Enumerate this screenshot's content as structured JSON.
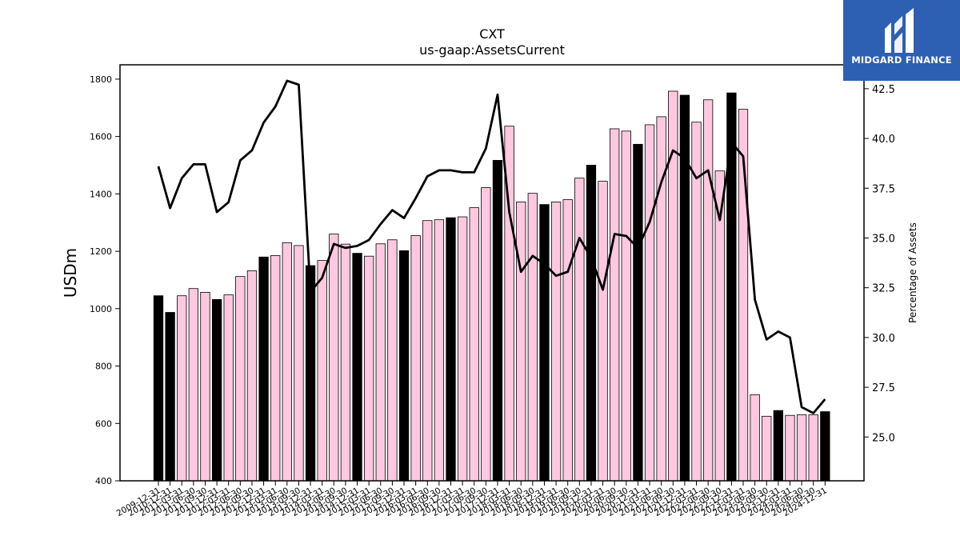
{
  "brand": {
    "name": "MIDGARD FINANCE",
    "logo_icon": "midgard-logo-icon",
    "bg_color": "#2d5fb3"
  },
  "chart_data": {
    "type": "bar",
    "title": "CXT",
    "subtitle": "us-gaap:AssetsCurrent",
    "ylabel": "USDm",
    "y2label": "Percentage of Assets",
    "ylim": [
      400,
      1850
    ],
    "y2lim": [
      22.8,
      43.7
    ],
    "yticks": [
      400,
      600,
      800,
      1000,
      1200,
      1400,
      1600,
      1800
    ],
    "y2ticks": [
      "25.0",
      "27.5",
      "30.0",
      "32.5",
      "35.0",
      "37.5",
      "40.0",
      "42.5"
    ],
    "grid": false,
    "colors": {
      "annual": "#000000",
      "quarterly": "#ffc8e0",
      "line": "#000000"
    },
    "x_tick_labels": [
      "2009-12-31",
      "2010-12-31",
      "2011-03-31",
      "2011-06-30",
      "2011-09-30",
      "2011-12-31",
      "2012-03-31",
      "2012-06-30",
      "2012-09-30",
      "2012-12-31",
      "2013-03-31",
      "2013-06-30",
      "2013-09-30",
      "2013-12-31",
      "2014-03-31",
      "2014-06-30",
      "2014-09-30",
      "2014-12-31",
      "2015-03-31",
      "2015-06-30",
      "2015-09-30",
      "2015-12-31",
      "2016-03-31",
      "2016-06-30",
      "2016-09-30",
      "2016-12-31",
      "2017-03-31",
      "2017-06-30",
      "2017-09-30",
      "2017-12-31",
      "2018-03-31",
      "2018-06-30",
      "2018-09-30",
      "2018-12-31",
      "2019-03-31",
      "2019-06-30",
      "2019-09-30",
      "2019-12-31",
      "2020-03-31",
      "2020-06-30",
      "2020-09-30",
      "2020-12-31",
      "2021-03-31",
      "2021-06-30",
      "2021-09-30",
      "2021-12-31",
      "2022-03-31",
      "2022-06-30",
      "2022-09-30",
      "2022-12-31",
      "2023-03-31",
      "2023-06-30",
      "2023-09-30",
      "2023-12-31",
      "2024-03-31",
      "2024-06-30",
      "2024-09-30",
      "2024-12-31"
    ],
    "bar_values": [
      1045,
      987,
      1045,
      1070,
      1057,
      1032,
      1048,
      1112,
      1132,
      1180,
      1185,
      1230,
      1220,
      1150,
      1168,
      1260,
      1225,
      1193,
      1183,
      1226,
      1240,
      1202,
      1255,
      1307,
      1310,
      1317,
      1320,
      1352,
      1422,
      1517,
      1636,
      1372,
      1402,
      1363,
      1372,
      1380,
      1455,
      1500,
      1444,
      1627,
      1619,
      1573,
      1641,
      1669,
      1758,
      1744,
      1650,
      1728,
      1480,
      1752,
      1695,
      700,
      625,
      645,
      628,
      630,
      630,
      641
    ],
    "bar_is_annual": [
      true,
      true,
      false,
      false,
      false,
      true,
      false,
      false,
      false,
      true,
      false,
      false,
      false,
      true,
      false,
      false,
      false,
      true,
      false,
      false,
      false,
      true,
      false,
      false,
      false,
      true,
      false,
      false,
      false,
      true,
      false,
      false,
      false,
      true,
      false,
      false,
      false,
      true,
      false,
      false,
      false,
      true,
      false,
      false,
      false,
      true,
      false,
      false,
      false,
      true,
      false,
      false,
      false,
      true,
      false,
      false,
      false,
      true
    ],
    "line_values": [
      38.6,
      36.5,
      38.0,
      38.7,
      38.7,
      36.3,
      36.8,
      38.9,
      39.4,
      40.8,
      41.6,
      42.9,
      42.7,
      32.3,
      33.0,
      34.7,
      34.5,
      34.6,
      34.9,
      35.7,
      36.4,
      36.0,
      37.0,
      38.1,
      38.4,
      38.4,
      38.3,
      38.3,
      39.5,
      42.2,
      36.3,
      33.3,
      34.1,
      33.7,
      33.1,
      33.3,
      35.0,
      34.0,
      32.4,
      35.2,
      35.1,
      34.5,
      35.8,
      37.8,
      39.4,
      39.0,
      38.0,
      38.4,
      35.9,
      39.8,
      39.1,
      31.9,
      29.9,
      30.3,
      30.0,
      26.5,
      26.2,
      26.9
    ]
  }
}
